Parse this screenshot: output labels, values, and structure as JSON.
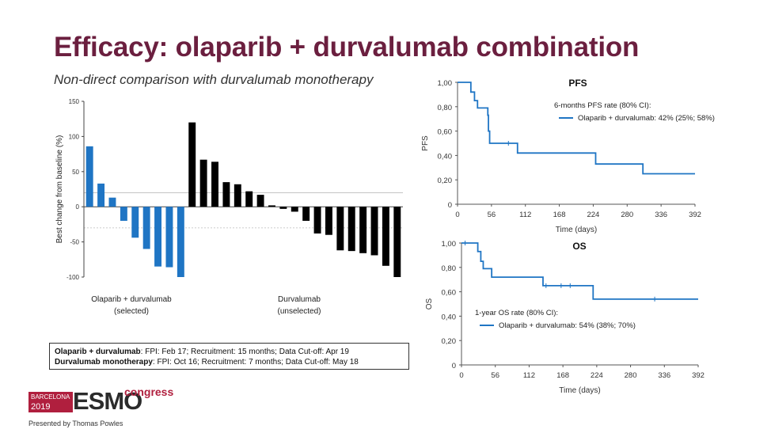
{
  "slide": {
    "title": "Efficacy: olaparib + durvalumab combination",
    "subtitle": "Non-direct comparison with durvalumab monotherapy"
  },
  "colors": {
    "title": "#6b1f3f",
    "combination": "#1f75c4",
    "monotherapy": "#000000",
    "esmo_red": "#b01f3e"
  },
  "info_box": {
    "row1_bold": "Olaparib + durvalumab",
    "row1_text": ": FPI: Feb 17; Recruitment: 15 months; Data Cut-off: Apr 19",
    "row2_bold": "Durvalumab monotherapy",
    "row2_text": ": FPI: Oct 16; Recruitment: 7 months; Data Cut-off: May 18"
  },
  "logo": {
    "city": "BARCELONA",
    "year": "2019",
    "brand": "ESMO",
    "suffix": "congress"
  },
  "presenter": "Presented by Thomas Powles",
  "chart_data": [
    {
      "type": "bar",
      "ylabel": "Best change from baseline (%)",
      "ylim": [
        -100,
        150
      ],
      "yticks": [
        "150",
        "100",
        "50",
        "0",
        "-50",
        "-100"
      ],
      "reference_lines": [
        20,
        -30
      ],
      "series": [
        {
          "name_line1": "Olaparib + durvalumab",
          "name_line2": "(selected)",
          "color": "#1f75c4",
          "values": [
            86,
            33,
            13,
            -20,
            -44,
            -60,
            -85,
            -86,
            -100
          ]
        },
        {
          "name_line1": "Durvalumab",
          "name_line2": "(unselected)",
          "color": "#000000",
          "values": [
            120,
            67,
            64,
            35,
            32,
            22,
            17,
            2,
            -3,
            -7,
            -20,
            -38,
            -40,
            -62,
            -63,
            -66,
            -69,
            -84,
            -100
          ]
        }
      ]
    },
    {
      "type": "line",
      "title": "PFS",
      "xlabel": "Time (days)",
      "ylabel": "PFS",
      "xticks": [
        "0",
        "56",
        "112",
        "168",
        "224",
        "280",
        "336",
        "392"
      ],
      "yticks": [
        "1,00",
        "0,80",
        "0,60",
        "0,40",
        "0,20",
        "0"
      ],
      "xlim": [
        0,
        392
      ],
      "ylim": [
        0,
        1
      ],
      "legend_title": "6-months PFS rate (80% CI):",
      "series": [
        {
          "name": "Olaparib + durvalumab: 42% (25%; 58%)",
          "color": "#1f75c4",
          "steps": [
            [
              0,
              1.0
            ],
            [
              22,
              0.92
            ],
            [
              28,
              0.85
            ],
            [
              33,
              0.79
            ],
            [
              50,
              0.73
            ],
            [
              51,
              0.6
            ],
            [
              53,
              0.5
            ],
            [
              99,
              0.42
            ],
            [
              228,
              0.33
            ],
            [
              306,
              0.25
            ],
            [
              392,
              0.25
            ]
          ],
          "censored": [
            [
              84,
              0.5
            ]
          ]
        }
      ]
    },
    {
      "type": "line",
      "title": "OS",
      "xlabel": "Time (days)",
      "ylabel": "OS",
      "xticks": [
        "0",
        "56",
        "112",
        "168",
        "224",
        "280",
        "336",
        "392"
      ],
      "yticks": [
        "1,00",
        "0,80",
        "0,60",
        "0,40",
        "0,20",
        "0"
      ],
      "xlim": [
        0,
        392
      ],
      "ylim": [
        0,
        1
      ],
      "legend_title": "1-year OS rate (80% CI):",
      "series": [
        {
          "name": "Olaparib + durvalumab: 54% (38%; 70%)",
          "color": "#1f75c4",
          "steps": [
            [
              0,
              1.0
            ],
            [
              27,
              0.93
            ],
            [
              32,
              0.85
            ],
            [
              36,
              0.79
            ],
            [
              50,
              0.72
            ],
            [
              135,
              0.65
            ],
            [
              218,
              0.54
            ],
            [
              392,
              0.54
            ]
          ],
          "censored": [
            [
              6,
              1.0
            ],
            [
              140,
              0.65
            ],
            [
              165,
              0.65
            ],
            [
              180,
              0.65
            ],
            [
              320,
              0.54
            ]
          ]
        }
      ]
    }
  ]
}
